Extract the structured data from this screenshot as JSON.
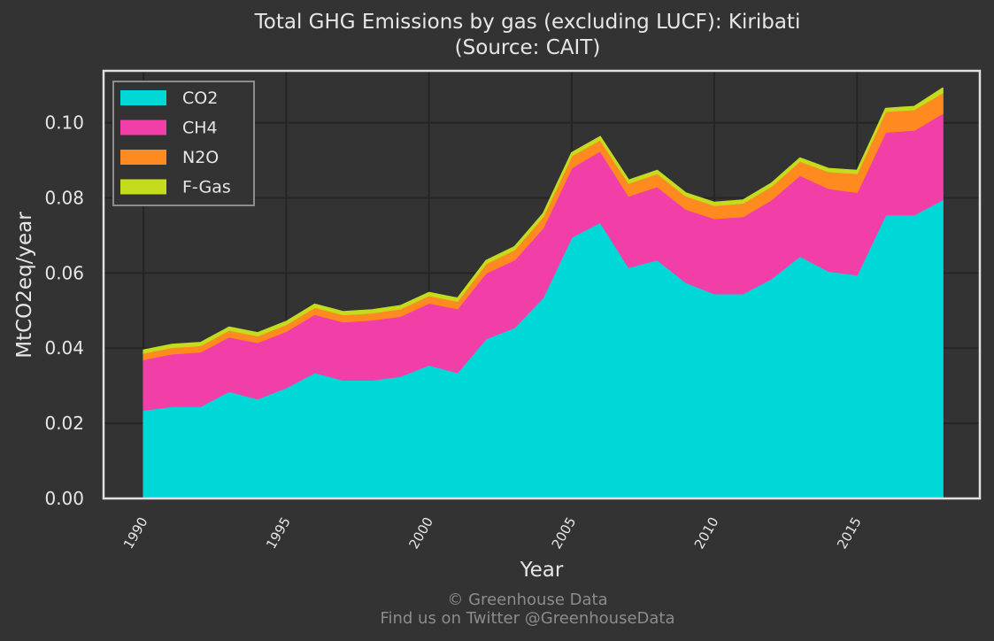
{
  "chart_data": {
    "type": "area",
    "stacked": true,
    "title": "Total GHG Emissions by gas (excluding LUCF): Kiribati",
    "subtitle": "(Source: CAIT)",
    "xlabel": "Year",
    "ylabel": "MtCO2eq/year",
    "xlim": [
      1988.6,
      2019.3
    ],
    "ylim": [
      0,
      0.1138
    ],
    "x_ticks": [
      1990,
      1995,
      2000,
      2005,
      2010,
      2015
    ],
    "y_ticks": [
      0.0,
      0.02,
      0.04,
      0.06,
      0.08,
      0.1
    ],
    "y_tick_labels": [
      "0.00",
      "0.02",
      "0.04",
      "0.06",
      "0.08",
      "0.10"
    ],
    "grid": true,
    "legend_position": "top-left",
    "x": [
      1990,
      1991,
      1992,
      1993,
      1994,
      1995,
      1996,
      1997,
      1998,
      1999,
      2000,
      2001,
      2002,
      2003,
      2004,
      2005,
      2006,
      2007,
      2008,
      2009,
      2010,
      2011,
      2012,
      2013,
      2014,
      2015,
      2016,
      2017,
      2018
    ],
    "series": [
      {
        "name": "CO2",
        "color": "#00d8d8",
        "values": [
          0.0235,
          0.0245,
          0.0245,
          0.0285,
          0.0265,
          0.0295,
          0.0335,
          0.0315,
          0.0315,
          0.0325,
          0.0355,
          0.0335,
          0.0425,
          0.0455,
          0.0535,
          0.0695,
          0.0735,
          0.0615,
          0.0635,
          0.0575,
          0.0545,
          0.0545,
          0.0585,
          0.0645,
          0.0605,
          0.0595,
          0.0755,
          0.0755,
          0.0795
        ]
      },
      {
        "name": "CH4",
        "color": "#f23fa8",
        "values": [
          0.0135,
          0.014,
          0.0145,
          0.0145,
          0.015,
          0.015,
          0.0155,
          0.0155,
          0.016,
          0.016,
          0.0165,
          0.017,
          0.0175,
          0.018,
          0.0185,
          0.0185,
          0.019,
          0.019,
          0.0195,
          0.0195,
          0.02,
          0.0205,
          0.021,
          0.0215,
          0.022,
          0.022,
          0.022,
          0.0225,
          0.023
        ]
      },
      {
        "name": "N2O",
        "color": "#ff8a1f",
        "values": [
          0.0017,
          0.0017,
          0.0017,
          0.0018,
          0.0018,
          0.0018,
          0.0019,
          0.0019,
          0.0019,
          0.002,
          0.002,
          0.002,
          0.0025,
          0.0027,
          0.003,
          0.0032,
          0.003,
          0.0034,
          0.0035,
          0.0035,
          0.0035,
          0.0036,
          0.0036,
          0.0038,
          0.0045,
          0.005,
          0.0055,
          0.0055,
          0.0055
        ]
      },
      {
        "name": "F-Gas",
        "color": "#c5dc1e",
        "values": [
          0.0008,
          0.0008,
          0.0008,
          0.0008,
          0.0008,
          0.0008,
          0.0008,
          0.0008,
          0.0008,
          0.0008,
          0.0008,
          0.0008,
          0.0008,
          0.0008,
          0.0008,
          0.0008,
          0.0008,
          0.0008,
          0.0008,
          0.0008,
          0.0008,
          0.0008,
          0.0008,
          0.0008,
          0.0008,
          0.0008,
          0.0008,
          0.0008,
          0.0012
        ]
      }
    ]
  },
  "footer": {
    "copyright": "© Greenhouse Data",
    "twitter": "Find us on Twitter @GreenhouseData"
  }
}
